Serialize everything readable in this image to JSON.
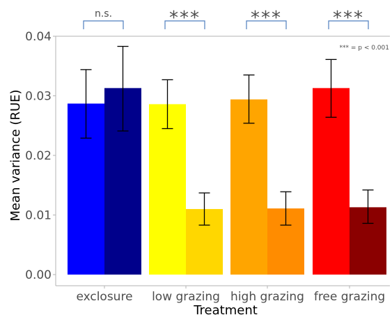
{
  "chart_data": {
    "type": "bar",
    "xlabel": "Treatment",
    "ylabel": "Mean variance (RUE)",
    "ylim": [
      0,
      0.04
    ],
    "yticks": [
      "0.00",
      "0.01",
      "0.02",
      "0.03",
      "0.04"
    ],
    "categories": [
      "exclosure",
      "low grazing",
      "high grazing",
      "free grazing"
    ],
    "series": [
      {
        "values": [
          0.0287,
          0.0286,
          0.0294,
          0.0313
        ],
        "err_low": [
          0.0229,
          0.0245,
          0.0254,
          0.0264
        ],
        "err_high": [
          0.0344,
          0.0327,
          0.0335,
          0.0361
        ],
        "colors": [
          "#0000FF",
          "#FFFF00",
          "#FFA500",
          "#FF0000"
        ]
      },
      {
        "values": [
          0.0313,
          0.011,
          0.0111,
          0.0113
        ],
        "err_low": [
          0.0241,
          0.0083,
          0.0083,
          0.0086
        ],
        "err_high": [
          0.0383,
          0.0137,
          0.0139,
          0.0142
        ],
        "colors": [
          "#00008B",
          "#FFD700",
          "#FF8C00",
          "#8B0000"
        ]
      }
    ],
    "significance": [
      "n.s.",
      "***",
      "***",
      "***"
    ],
    "annotation": "*** = p < 0.001",
    "grid": false,
    "bracket_color": "#4f7fbf"
  }
}
